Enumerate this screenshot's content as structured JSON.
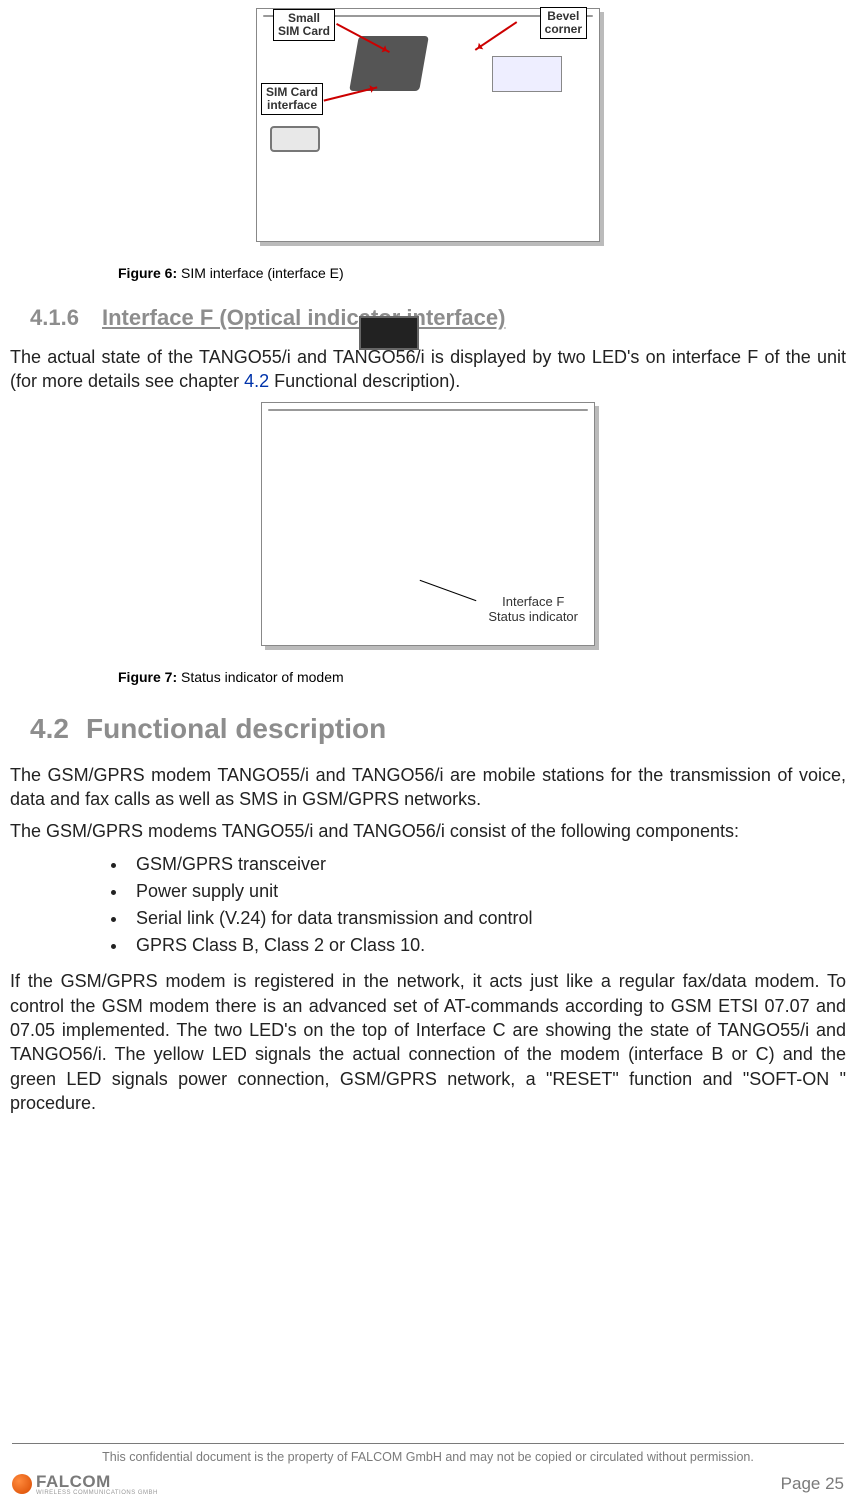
{
  "figure6": {
    "caption_label": "Figure 6:",
    "caption_text": " SIM interface (interface E)",
    "annotations": {
      "small_sim": "Small\nSIM Card",
      "bevel": "Bevel\ncorner",
      "sim_if": "SIM Card\ninterface"
    },
    "colors": {
      "arrow": "#cc0000",
      "box_border": "#000000",
      "device_light": "#f0f0f0",
      "device_dark": "#c8c8c8"
    }
  },
  "section_416": {
    "number": "4.1.6",
    "title": "Interface F (Optical indicator interface)"
  },
  "para_416": {
    "part1": "The actual state of the TANGO55/i and TANGO56/i is displayed by two LED's on interface F of the unit (for more details see chapter ",
    "link": "4.2",
    "part2": " Functional description)."
  },
  "figure7": {
    "caption_label": "Figure 7:",
    "caption_text": " Status indicator of modem",
    "annotation_line1": "Interface F",
    "annotation_line2": "Status indicator"
  },
  "section_42": {
    "number": "4.2",
    "title": "Functional description"
  },
  "body42": {
    "p1": "The GSM/GPRS modem TANGO55/i and TANGO56/i are mobile stations for the transmission of voice, data and fax calls as well as SMS in GSM/GPRS networks.",
    "p2": "The GSM/GPRS modems TANGO55/i and TANGO56/i consist of the following components:",
    "bullets": [
      "GSM/GPRS transceiver",
      "Power supply unit",
      "Serial link (V.24) for data transmission and control",
      "GPRS Class B, Class 2 or Class 10."
    ],
    "p3": "If the GSM/GPRS modem is registered in the network, it acts just like a regular fax/data modem. To control the GSM modem there is an advanced set of AT-commands according to GSM ETSI 07.07 and 07.05 implemented. The two LED's on the top of Interface C are showing the state of TANGO55/i and TANGO56/i. The yellow LED signals the actual connection of the modem (interface B or C) and the green LED signals power connection, GSM/GPRS network, a \"RESET\" function and \"SOFT-ON \" procedure."
  },
  "footer": {
    "disclaimer": "This confidential document is the property of FALCOM GmbH and may not be copied or circulated without permission.",
    "logo_text": "FALCOM",
    "logo_sub": "WIRELESS COMMUNICATIONS GMBH",
    "page": "Page 25"
  },
  "style": {
    "heading_color": "#8d8d8d",
    "link_color": "#0033aa",
    "body_color": "#222222",
    "footer_color": "#7a7a7a",
    "logo_orange": "#d84a00",
    "body_fontsize": 18,
    "caption_fontsize": 14,
    "minor_heading_fontsize": 22,
    "major_heading_fontsize": 28
  }
}
